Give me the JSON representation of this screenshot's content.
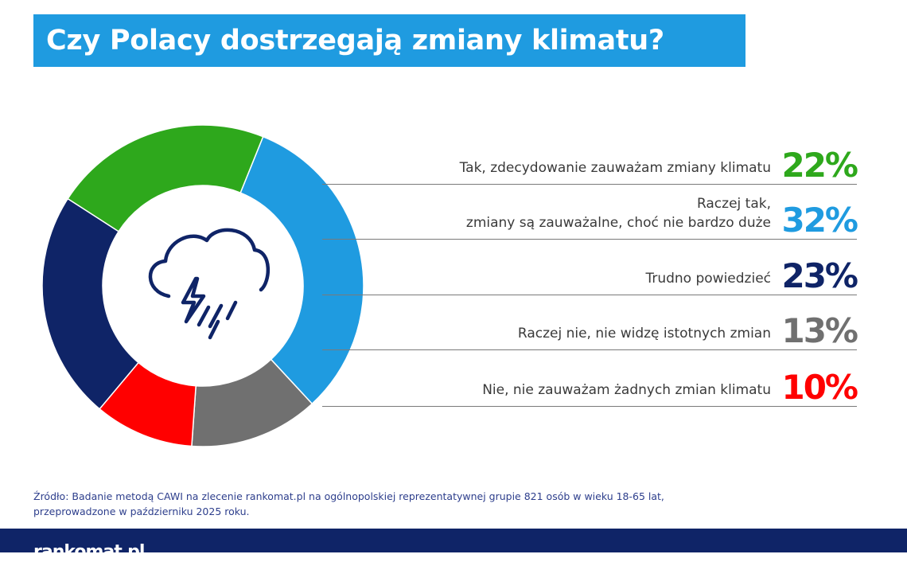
{
  "title": "Czy Polacy dostrzegają zmiany klimatu?",
  "chart_data": {
    "type": "pie",
    "donut": true,
    "title": "Czy Polacy dostrzegają zmiany klimatu?",
    "slices": [
      {
        "label": "Tak, zdecydowanie zauważam zmiany klimatu",
        "value": 22,
        "value_label": "22%",
        "color": "#2ea81c"
      },
      {
        "label": "Raczej tak,\nzmiany są zauważalne, choć nie bardzo duże",
        "value": 32,
        "value_label": "32%",
        "color": "#1f9be0"
      },
      {
        "label": "Trudno powiedzieć",
        "value": 23,
        "value_label": "23%",
        "color": "#0f2467"
      },
      {
        "label": "Raczej nie, nie widzę istotnych zmian",
        "value": 13,
        "value_label": "13%",
        "color": "#707070"
      },
      {
        "label": "Nie, nie zauważam żadnych zmian klimatu",
        "value": 10,
        "value_label": "10%",
        "color": "#ff0000"
      }
    ],
    "draw_order": [
      1,
      3,
      4,
      2,
      0
    ],
    "legend": "right"
  },
  "center_icon": "storm-cloud-icon",
  "source": "Źródło: Badanie metodą CAWI na zlecenie rankomat.pl na ogólnopolskiej reprezentatywnej grupie 821 osób w wieku 18-65 lat, przeprowadzone w październiku 2025 roku.",
  "brand": "rankomat.pl"
}
